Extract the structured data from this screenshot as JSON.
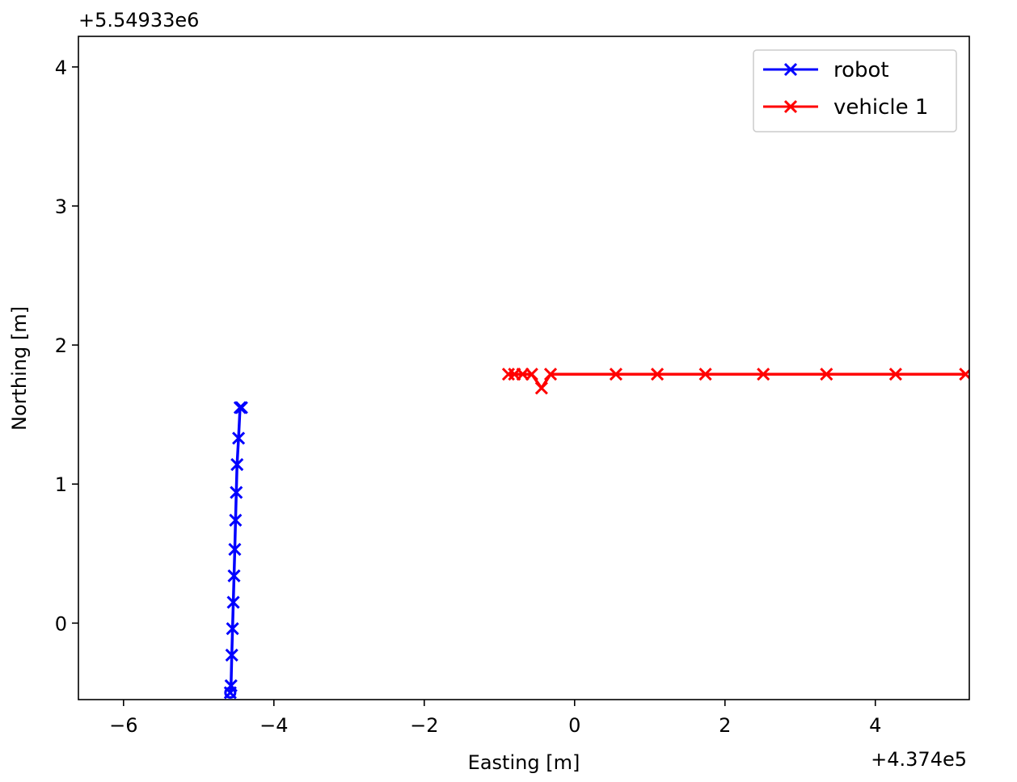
{
  "chart_data": {
    "type": "line",
    "xlabel": "Easting [m]",
    "ylabel": "Northing [m]",
    "x_offset_label": "+4.374e5",
    "y_offset_label": "+5.54933e6",
    "xlim": [
      -6.6,
      5.25
    ],
    "ylim": [
      -0.55,
      4.22
    ],
    "xticks": [
      -6,
      -4,
      -2,
      0,
      2,
      4
    ],
    "xtick_labels": [
      "−6",
      "−4",
      "−2",
      "0",
      "2",
      "4"
    ],
    "yticks": [
      0,
      1,
      2,
      3,
      4
    ],
    "ytick_labels": [
      "0",
      "1",
      "2",
      "3",
      "4"
    ],
    "grid": false,
    "legend_position": "top-right",
    "series": [
      {
        "name": "robot",
        "color": "#0000ff",
        "marker": "x",
        "x": [
          -4.58,
          -4.57,
          -4.56,
          -4.55,
          -4.54,
          -4.53,
          -4.52,
          -4.51,
          -4.5,
          -4.49,
          -4.47,
          -4.45,
          -4.43
        ],
        "y": [
          -0.5,
          -0.45,
          -0.23,
          -0.04,
          0.15,
          0.34,
          0.53,
          0.74,
          0.94,
          1.14,
          1.33,
          1.55,
          1.55
        ]
      },
      {
        "name": "vehicle 1",
        "color": "#ff0000",
        "marker": "x",
        "x": [
          -0.88,
          -0.8,
          -0.69,
          -0.57,
          -0.44,
          -0.32,
          0.55,
          1.1,
          1.74,
          2.51,
          3.35,
          4.27,
          5.2
        ],
        "y": [
          1.79,
          1.79,
          1.79,
          1.79,
          1.69,
          1.79,
          1.79,
          1.79,
          1.79,
          1.79,
          1.79,
          1.79,
          1.79
        ]
      }
    ]
  }
}
